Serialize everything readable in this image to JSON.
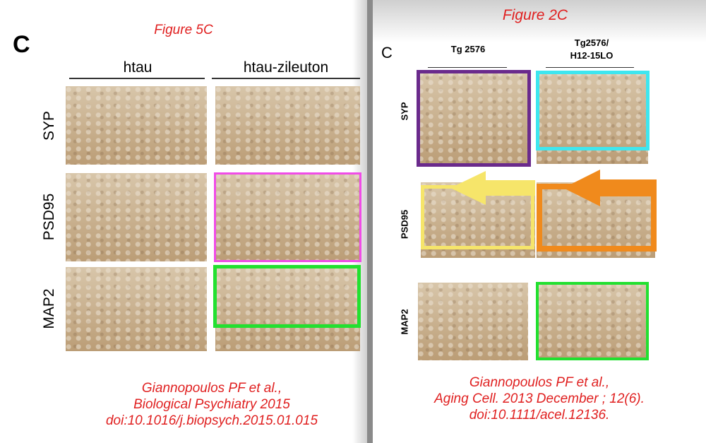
{
  "left": {
    "figure_label": "Figure 5C",
    "panel_letter": "C",
    "columns": [
      "htau",
      "htau-zileuton"
    ],
    "rows": [
      "SYP",
      "PSD95",
      "MAP2"
    ],
    "citation": [
      "Giannopoulos PF et al.,",
      "Biological Psychiatry 2015",
      "doi:10.1016/j.biopsych.2015.01.015"
    ]
  },
  "right": {
    "figure_label": "Figure 2C",
    "panel_letter": "C",
    "columns": [
      [
        "Tg 2576"
      ],
      [
        "Tg2576/",
        "H12-15LO"
      ]
    ],
    "rows": [
      "SYP",
      "PSD95",
      "MAP2"
    ],
    "citation": [
      "Giannopoulos PF et al.,",
      "Aging Cell. 2013 December ; 12(6).",
      "doi:10.1111/acel.12136."
    ]
  }
}
